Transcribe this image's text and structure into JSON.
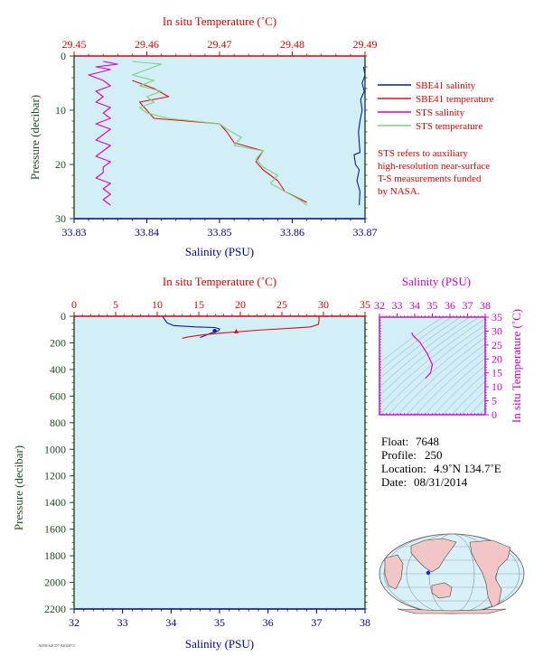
{
  "colors": {
    "plot_bg": "#d2eef6",
    "salinity_axis": "#000099",
    "temperature_axis": "#e00000",
    "pressure_axis": "#1e4d1e",
    "sbe_salinity": "#0a1aa8",
    "sbe_temperature": "#e01010",
    "sts_salinity": "#e000c8",
    "sts_temperature": "#7fd07f",
    "inset_axis": "#cc00cc",
    "land": "#f2c6c6",
    "ocean": "#d8f0f8"
  },
  "top_panel": {
    "top_axis_title": "In situ Temperature (˚C)",
    "bottom_axis_title": "Salinity (PSU)",
    "left_axis_title": "Pressure (decibar)",
    "temp_ticks": [
      "29.45",
      "29.46",
      "29.47",
      "29.48",
      "29.49"
    ],
    "sal_ticks": [
      "33.83",
      "33.84",
      "33.85",
      "33.86",
      "33.87"
    ],
    "pres_ticks": [
      "0",
      "10",
      "20",
      "30"
    ],
    "legend": [
      {
        "label": "SBE41 salinity",
        "color": "#0a1aa8"
      },
      {
        "label": "SBE41 temperature",
        "color": "#e01010"
      },
      {
        "label": "STS salinity",
        "color": "#e000c8"
      },
      {
        "label": "STS temperature",
        "color": "#7fd07f"
      }
    ],
    "note_lines": [
      "STS refers to auxiliary",
      "high-resolution near-surface",
      "T-S measurements funded",
      "by NASA."
    ]
  },
  "bottom_panel": {
    "top_axis_title": "In situ Temperature (˚C)",
    "bottom_axis_title": "Salinity (PSU)",
    "left_axis_title": "Pressure (decibar)",
    "temp_ticks": [
      "0",
      "5",
      "10",
      "15",
      "20",
      "25",
      "30",
      "35"
    ],
    "sal_ticks": [
      "32",
      "33",
      "34",
      "35",
      "36",
      "37",
      "38"
    ],
    "pres_ticks": [
      "0",
      "200",
      "400",
      "600",
      "800",
      "1000",
      "1200",
      "1400",
      "1600",
      "1800",
      "2000",
      "2200"
    ]
  },
  "inset": {
    "top_axis_title": "Salinity (PSU)",
    "right_axis_title": "In situ Temperature (˚C)",
    "sal_ticks": [
      "32",
      "33",
      "34",
      "35",
      "36",
      "37",
      "38"
    ],
    "temp_ticks": [
      "0",
      "5",
      "10",
      "15",
      "20",
      "25",
      "30",
      "35"
    ]
  },
  "info": {
    "float_label": "Float:",
    "float_value": "7648",
    "profile_label": "Profile:",
    "profile_value": "250",
    "location_label": "Location:",
    "location_value": "4.9˚N  134.7˚E",
    "date_label": "Date:",
    "date_value": "08/31/2014"
  },
  "footer_code": "A050-S2C07 0202073",
  "chart_data": [
    {
      "type": "line",
      "x_top_label": "In situ Temperature (˚C)",
      "x_bottom_label": "Salinity (PSU)",
      "ylabel": "Pressure (decibar)",
      "temp_lim": [
        29.45,
        29.49
      ],
      "sal_lim": [
        33.83,
        33.87
      ],
      "ylim": [
        0,
        30
      ],
      "y_inverted": true,
      "grid": false,
      "legend_position": "right",
      "series": [
        {
          "name": "SBE41 salinity",
          "axis": "salinity",
          "color": "#0a1aa8",
          "points": [
            [
              33.8698,
              2.0
            ],
            [
              33.87,
              3.5
            ],
            [
              33.8696,
              5.0
            ],
            [
              33.8699,
              6.5
            ],
            [
              33.8694,
              8.0
            ],
            [
              33.8696,
              10.0
            ],
            [
              33.8693,
              12.0
            ],
            [
              33.8691,
              14.0
            ],
            [
              33.8692,
              16.0
            ],
            [
              33.8693,
              17.8
            ],
            [
              33.8685,
              18.2
            ],
            [
              33.8687,
              20.0
            ],
            [
              33.8692,
              21.0
            ],
            [
              33.8689,
              23.0
            ],
            [
              33.8693,
              25.0
            ],
            [
              33.8692,
              27.5
            ]
          ]
        },
        {
          "name": "SBE41 temperature",
          "axis": "temperature",
          "color": "#e01010",
          "points": [
            [
              29.458,
              4.5
            ],
            [
              29.461,
              6.0
            ],
            [
              29.463,
              7.5
            ],
            [
              29.459,
              8.5
            ],
            [
              29.46,
              10.0
            ],
            [
              29.461,
              11.5
            ],
            [
              29.47,
              12.5
            ],
            [
              29.471,
              14.0
            ],
            [
              29.472,
              16.0
            ],
            [
              29.476,
              17.5
            ],
            [
              29.475,
              19.5
            ],
            [
              29.476,
              21.0
            ],
            [
              29.478,
              23.0
            ],
            [
              29.479,
              25.0
            ],
            [
              29.482,
              27.0
            ]
          ]
        },
        {
          "name": "STS salinity",
          "axis": "salinity",
          "color": "#e000c8",
          "points": [
            [
              33.834,
              1.0
            ],
            [
              33.836,
              1.5
            ],
            [
              33.833,
              2.0
            ],
            [
              33.835,
              2.5
            ],
            [
              33.832,
              3.5
            ],
            [
              33.834,
              4.5
            ],
            [
              33.835,
              5.5
            ],
            [
              33.833,
              6.5
            ],
            [
              33.834,
              7.5
            ],
            [
              33.833,
              8.5
            ],
            [
              33.835,
              9.5
            ],
            [
              33.834,
              10.5
            ],
            [
              33.835,
              11.5
            ],
            [
              33.833,
              12.5
            ],
            [
              33.835,
              13.5
            ],
            [
              33.834,
              14.5
            ],
            [
              33.833,
              15.5
            ],
            [
              33.835,
              16.5
            ],
            [
              33.834,
              17.5
            ],
            [
              33.833,
              18.5
            ],
            [
              33.835,
              19.5
            ],
            [
              33.834,
              20.5
            ],
            [
              33.834,
              21.5
            ],
            [
              33.833,
              22.5
            ],
            [
              33.835,
              23.5
            ],
            [
              33.834,
              24.5
            ],
            [
              33.835,
              25.5
            ],
            [
              33.834,
              26.5
            ],
            [
              33.835,
              27.5
            ]
          ]
        },
        {
          "name": "STS temperature",
          "axis": "temperature",
          "color": "#7fd07f",
          "points": [
            [
              29.458,
              1.0
            ],
            [
              29.462,
              1.5
            ],
            [
              29.46,
              2.5
            ],
            [
              29.458,
              3.5
            ],
            [
              29.461,
              4.5
            ],
            [
              29.459,
              5.5
            ],
            [
              29.462,
              6.5
            ],
            [
              29.46,
              7.5
            ],
            [
              29.461,
              8.5
            ],
            [
              29.459,
              9.5
            ],
            [
              29.46,
              10.5
            ],
            [
              29.463,
              11.5
            ],
            [
              29.47,
              12.5
            ],
            [
              29.471,
              13.5
            ],
            [
              29.473,
              15.0
            ],
            [
              29.472,
              16.5
            ],
            [
              29.476,
              17.5
            ],
            [
              29.475,
              19.0
            ],
            [
              29.476,
              20.5
            ],
            [
              29.478,
              22.0
            ],
            [
              29.477,
              23.5
            ],
            [
              29.479,
              25.0
            ],
            [
              29.481,
              26.5
            ],
            [
              29.482,
              27.5
            ]
          ]
        }
      ]
    },
    {
      "type": "line",
      "x_top_label": "In situ Temperature (˚C)",
      "x_bottom_label": "Salinity (PSU)",
      "ylabel": "Pressure (decibar)",
      "temp_lim": [
        0,
        35
      ],
      "sal_lim": [
        32,
        38
      ],
      "ylim": [
        0,
        2200
      ],
      "y_inverted": true,
      "grid": false,
      "series": [
        {
          "axis": "salinity",
          "color": "#0a1aa8",
          "points": [
            [
              33.83,
              0
            ],
            [
              33.83,
              5
            ],
            [
              33.85,
              15
            ],
            [
              33.88,
              30
            ],
            [
              33.92,
              50
            ],
            [
              34.05,
              70
            ],
            [
              34.5,
              80
            ],
            [
              34.9,
              85
            ],
            [
              35.0,
              95
            ],
            [
              34.98,
              110
            ],
            [
              34.8,
              130
            ],
            [
              34.6,
              160
            ]
          ]
        },
        {
          "axis": "temperature",
          "color": "#e01010",
          "points": [
            [
              29.45,
              0
            ],
            [
              29.47,
              30
            ],
            [
              29.4,
              60
            ],
            [
              28.5,
              80
            ],
            [
              26.0,
              90
            ],
            [
              22.0,
              105
            ],
            [
              18.0,
              125
            ],
            [
              15.5,
              140
            ],
            [
              13.8,
              155
            ],
            [
              13.0,
              165
            ]
          ]
        }
      ]
    },
    {
      "type": "line",
      "x_label": "Salinity (PSU)",
      "y_label": "In situ Temperature (˚C)",
      "xlim": [
        32,
        38
      ],
      "ylim": [
        0,
        35
      ],
      "series": [
        {
          "color": "#e000c8",
          "points": [
            [
              33.83,
              29.45
            ],
            [
              33.9,
              28.5
            ],
            [
              34.3,
              26.0
            ],
            [
              34.7,
              22.0
            ],
            [
              35.0,
              18.0
            ],
            [
              34.9,
              15.0
            ],
            [
              34.6,
              13.0
            ]
          ]
        }
      ]
    }
  ]
}
